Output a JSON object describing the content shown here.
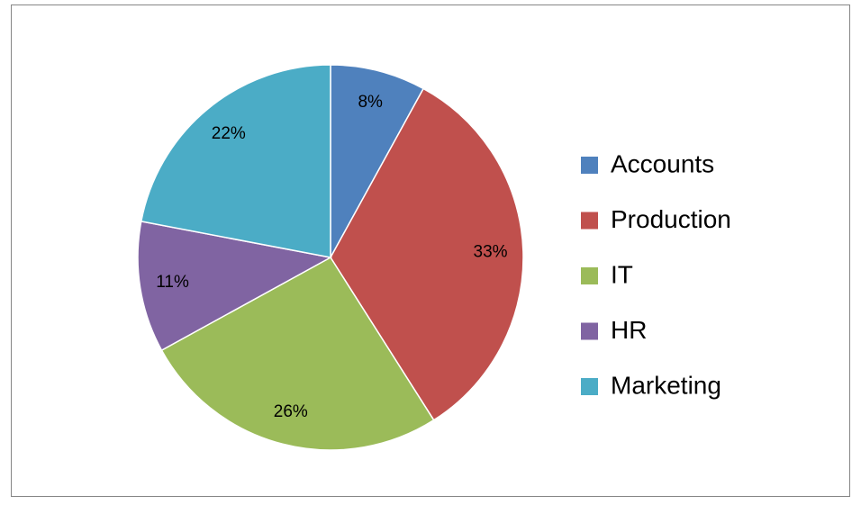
{
  "chart_data": {
    "type": "pie",
    "categories": [
      "Accounts",
      "Production",
      "IT",
      "HR",
      "Marketing"
    ],
    "values": [
      8,
      33,
      26,
      11,
      22
    ],
    "value_labels": [
      "8%",
      "33%",
      "26%",
      "11%",
      "22%"
    ],
    "colors": [
      "#4f81bd",
      "#c0504d",
      "#9bbb59",
      "#8064a2",
      "#4bacc6"
    ],
    "legend": "right"
  }
}
